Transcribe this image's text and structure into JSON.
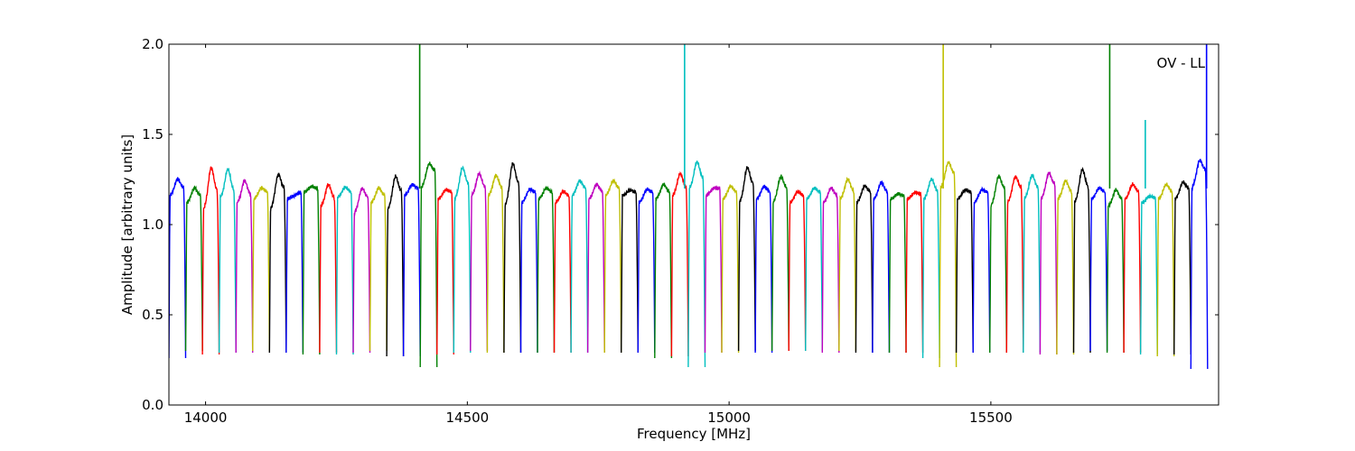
{
  "chart_data": {
    "type": "line",
    "title": "",
    "annotation": "OV - LL",
    "xlabel": "Frequency [MHz]",
    "ylabel": "Amplitude [arbitrary units]",
    "xlim": [
      13930,
      15935
    ],
    "ylim": [
      0.0,
      2.0
    ],
    "x_ticks": [
      14000,
      14500,
      15000,
      15500
    ],
    "x_tick_labels": [
      "14000",
      "14500",
      "15000",
      "15500"
    ],
    "y_ticks": [
      0.0,
      0.5,
      1.0,
      1.5,
      2.0
    ],
    "y_tick_labels": [
      "0.0",
      "0.5",
      "1.0",
      "1.5",
      "2.0"
    ],
    "grid": false,
    "legend": "none",
    "channel_width_mhz": 32,
    "channels": [
      {
        "start": 13930,
        "color": "#0000ff",
        "peak": 1.27,
        "left_level": 1.16,
        "right_level": 1.2,
        "min": 0.26
      },
      {
        "start": 13962,
        "color": "#008000",
        "peak": 1.22,
        "left_level": 1.12,
        "right_level": 1.16,
        "min": 0.3
      },
      {
        "start": 13994,
        "color": "#ff0000",
        "peak": 1.36,
        "left_level": 1.08,
        "right_level": 1.18,
        "min": 0.28
      },
      {
        "start": 14026,
        "color": "#00bfbf",
        "peak": 1.32,
        "left_level": 1.15,
        "right_level": 1.18,
        "min": 0.29
      },
      {
        "start": 14058,
        "color": "#bf00bf",
        "peak": 1.26,
        "left_level": 1.12,
        "right_level": 1.16,
        "min": 0.29
      },
      {
        "start": 14090,
        "color": "#bfbf00",
        "peak": 1.22,
        "left_level": 1.14,
        "right_level": 1.18,
        "min": 0.3
      },
      {
        "start": 14122,
        "color": "#000000",
        "peak": 1.33,
        "left_level": 1.08,
        "right_level": 1.2,
        "min": 0.29
      },
      {
        "start": 14154,
        "color": "#0000ff",
        "peak": 1.18,
        "left_level": 1.14,
        "right_level": 1.18,
        "min": 0.29
      },
      {
        "start": 14186,
        "color": "#008000",
        "peak": 1.22,
        "left_level": 1.18,
        "right_level": 1.2,
        "min": 0.28
      },
      {
        "start": 14218,
        "color": "#ff0000",
        "peak": 1.24,
        "left_level": 1.1,
        "right_level": 1.14,
        "min": 0.29
      },
      {
        "start": 14250,
        "color": "#00bfbf",
        "peak": 1.22,
        "left_level": 1.15,
        "right_level": 1.18,
        "min": 0.28
      },
      {
        "start": 14282,
        "color": "#bf00bf",
        "peak": 1.24,
        "left_level": 1.06,
        "right_level": 1.15,
        "min": 0.29
      },
      {
        "start": 14314,
        "color": "#bfbf00",
        "peak": 1.22,
        "left_level": 1.12,
        "right_level": 1.16,
        "min": 0.3
      },
      {
        "start": 14346,
        "color": "#000000",
        "peak": 1.31,
        "left_level": 1.08,
        "right_level": 1.18,
        "min": 0.27
      },
      {
        "start": 14378,
        "color": "#0000ff",
        "peak": 1.24,
        "left_level": 1.16,
        "right_level": 1.2,
        "min": 0.27
      },
      {
        "start": 14410,
        "color": "#008000",
        "peak": 1.38,
        "left_level": 1.2,
        "right_level": 1.3,
        "min": 0.21
      },
      {
        "start": 14442,
        "color": "#ff0000",
        "peak": 1.21,
        "left_level": 1.14,
        "right_level": 1.18,
        "min": 0.28
      },
      {
        "start": 14474,
        "color": "#00bfbf",
        "peak": 1.35,
        "left_level": 1.14,
        "right_level": 1.22,
        "min": 0.29
      },
      {
        "start": 14506,
        "color": "#bf00bf",
        "peak": 1.3,
        "left_level": 1.16,
        "right_level": 1.2,
        "min": 0.3
      },
      {
        "start": 14538,
        "color": "#bfbf00",
        "peak": 1.29,
        "left_level": 1.16,
        "right_level": 1.2,
        "min": 0.29
      },
      {
        "start": 14570,
        "color": "#000000",
        "peak": 1.39,
        "left_level": 1.1,
        "right_level": 1.22,
        "min": 0.29
      },
      {
        "start": 14602,
        "color": "#0000ff",
        "peak": 1.22,
        "left_level": 1.12,
        "right_level": 1.18,
        "min": 0.29
      },
      {
        "start": 14634,
        "color": "#008000",
        "peak": 1.22,
        "left_level": 1.14,
        "right_level": 1.18,
        "min": 0.29
      },
      {
        "start": 14666,
        "color": "#ff0000",
        "peak": 1.2,
        "left_level": 1.12,
        "right_level": 1.16,
        "min": 0.29
      },
      {
        "start": 14698,
        "color": "#00bfbf",
        "peak": 1.26,
        "left_level": 1.16,
        "right_level": 1.2,
        "min": 0.29
      },
      {
        "start": 14730,
        "color": "#bf00bf",
        "peak": 1.24,
        "left_level": 1.14,
        "right_level": 1.18,
        "min": 0.29
      },
      {
        "start": 14762,
        "color": "#bfbf00",
        "peak": 1.26,
        "left_level": 1.16,
        "right_level": 1.2,
        "min": 0.29
      },
      {
        "start": 14794,
        "color": "#000000",
        "peak": 1.2,
        "left_level": 1.16,
        "right_level": 1.18,
        "min": 0.29
      },
      {
        "start": 14826,
        "color": "#0000ff",
        "peak": 1.22,
        "left_level": 1.12,
        "right_level": 1.18,
        "min": 0.29
      },
      {
        "start": 14858,
        "color": "#008000",
        "peak": 1.24,
        "left_level": 1.14,
        "right_level": 1.18,
        "min": 0.26
      },
      {
        "start": 14890,
        "color": "#ff0000",
        "peak": 1.3,
        "left_level": 1.16,
        "right_level": 1.2,
        "min": 0.27
      },
      {
        "start": 14922,
        "color": "#00bfbf",
        "peak": 1.37,
        "left_level": 1.2,
        "right_level": 1.25,
        "min": 0.21
      },
      {
        "start": 14954,
        "color": "#bf00bf",
        "peak": 1.22,
        "left_level": 1.16,
        "right_level": 1.2,
        "min": 0.29
      },
      {
        "start": 14986,
        "color": "#bfbf00",
        "peak": 1.23,
        "left_level": 1.14,
        "right_level": 1.18,
        "min": 0.29
      },
      {
        "start": 15018,
        "color": "#000000",
        "peak": 1.36,
        "left_level": 1.12,
        "right_level": 1.22,
        "min": 0.3
      },
      {
        "start": 15050,
        "color": "#0000ff",
        "peak": 1.23,
        "left_level": 1.14,
        "right_level": 1.18,
        "min": 0.29
      },
      {
        "start": 15082,
        "color": "#008000",
        "peak": 1.3,
        "left_level": 1.12,
        "right_level": 1.2,
        "min": 0.3
      },
      {
        "start": 15114,
        "color": "#ff0000",
        "peak": 1.2,
        "left_level": 1.12,
        "right_level": 1.16,
        "min": 0.3
      },
      {
        "start": 15146,
        "color": "#00bfbf",
        "peak": 1.22,
        "left_level": 1.14,
        "right_level": 1.18,
        "min": 0.3
      },
      {
        "start": 15178,
        "color": "#bf00bf",
        "peak": 1.22,
        "left_level": 1.12,
        "right_level": 1.16,
        "min": 0.29
      },
      {
        "start": 15210,
        "color": "#bfbf00",
        "peak": 1.27,
        "left_level": 1.14,
        "right_level": 1.18,
        "min": 0.3
      },
      {
        "start": 15242,
        "color": "#000000",
        "peak": 1.24,
        "left_level": 1.12,
        "right_level": 1.18,
        "min": 0.29
      },
      {
        "start": 15274,
        "color": "#0000ff",
        "peak": 1.25,
        "left_level": 1.14,
        "right_level": 1.18,
        "min": 0.29
      },
      {
        "start": 15306,
        "color": "#008000",
        "peak": 1.18,
        "left_level": 1.14,
        "right_level": 1.16,
        "min": 0.29
      },
      {
        "start": 15338,
        "color": "#ff0000",
        "peak": 1.19,
        "left_level": 1.14,
        "right_level": 1.17,
        "min": 0.29
      },
      {
        "start": 15370,
        "color": "#00bfbf",
        "peak": 1.27,
        "left_level": 1.14,
        "right_level": 1.18,
        "min": 0.26
      },
      {
        "start": 15402,
        "color": "#bfbf00",
        "peak": 1.38,
        "left_level": 1.2,
        "right_level": 1.28,
        "min": 0.21
      },
      {
        "start": 15434,
        "color": "#000000",
        "peak": 1.21,
        "left_level": 1.14,
        "right_level": 1.18,
        "min": 0.29
      },
      {
        "start": 15466,
        "color": "#0000ff",
        "peak": 1.22,
        "left_level": 1.12,
        "right_level": 1.18,
        "min": 0.29
      },
      {
        "start": 15498,
        "color": "#008000",
        "peak": 1.31,
        "left_level": 1.1,
        "right_level": 1.2,
        "min": 0.29
      },
      {
        "start": 15530,
        "color": "#ff0000",
        "peak": 1.3,
        "left_level": 1.12,
        "right_level": 1.2,
        "min": 0.29
      },
      {
        "start": 15562,
        "color": "#00bfbf",
        "peak": 1.3,
        "left_level": 1.14,
        "right_level": 1.2,
        "min": 0.29
      },
      {
        "start": 15594,
        "color": "#bf00bf",
        "peak": 1.32,
        "left_level": 1.14,
        "right_level": 1.22,
        "min": 0.28
      },
      {
        "start": 15626,
        "color": "#bfbf00",
        "peak": 1.26,
        "left_level": 1.14,
        "right_level": 1.18,
        "min": 0.28
      },
      {
        "start": 15658,
        "color": "#000000",
        "peak": 1.34,
        "left_level": 1.12,
        "right_level": 1.2,
        "min": 0.29
      },
      {
        "start": 15690,
        "color": "#0000ff",
        "peak": 1.22,
        "left_level": 1.14,
        "right_level": 1.18,
        "min": 0.3
      },
      {
        "start": 15722,
        "color": "#008000",
        "peak": 1.21,
        "left_level": 1.1,
        "right_level": 1.14,
        "min": 0.29
      },
      {
        "start": 15754,
        "color": "#ff0000",
        "peak": 1.24,
        "left_level": 1.14,
        "right_level": 1.18,
        "min": 0.29
      },
      {
        "start": 15786,
        "color": "#00bfbf",
        "peak": 1.17,
        "left_level": 1.12,
        "right_level": 1.15,
        "min": 0.28
      },
      {
        "start": 15818,
        "color": "#bfbf00",
        "peak": 1.24,
        "left_level": 1.14,
        "right_level": 1.18,
        "min": 0.27
      },
      {
        "start": 15850,
        "color": "#000000",
        "peak": 1.26,
        "left_level": 1.14,
        "right_level": 1.2,
        "min": 0.28
      },
      {
        "start": 15882,
        "color": "#0000ff",
        "peak": 1.4,
        "left_level": 1.2,
        "right_level": 1.3,
        "min": 0.2
      }
    ],
    "spikes": [
      {
        "x": 14409,
        "y": 2.0,
        "color": "#008000"
      },
      {
        "x": 14915,
        "y": 2.0,
        "color": "#00bfbf"
      },
      {
        "x": 15409,
        "y": 2.0,
        "color": "#bfbf00"
      },
      {
        "x": 15727,
        "y": 2.0,
        "color": "#008000"
      },
      {
        "x": 15795,
        "y": 1.58,
        "color": "#00bfbf"
      },
      {
        "x": 15912,
        "y": 2.0,
        "color": "#0000ff"
      }
    ]
  }
}
